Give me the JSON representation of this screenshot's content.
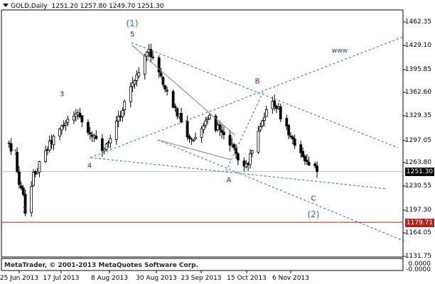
{
  "header": {
    "symbol": "GOLD,Daily",
    "open": "1251.20",
    "high": "1257.80",
    "low": "1249.70",
    "close": "1251.30"
  },
  "price_axis": {
    "ticks": [
      "1462.35",
      "1429.10",
      "1395.85",
      "1362.60",
      "1329.35",
      "1297.05",
      "1263.80",
      "1230.55",
      "1197.30",
      "1164.05",
      "1131.75"
    ],
    "current_price": "1251.30",
    "support_level": "1179.71"
  },
  "time_axis": {
    "ticks": [
      "25 Jun 2013",
      "17 Jul 2013",
      "8 Aug 2013",
      "30 Aug 2013",
      "23 Sep 2013",
      "15 Oct 2013",
      "6 Nov 2013"
    ]
  },
  "wave_labels": {
    "w1": "1",
    "w2": "2",
    "w3": "3",
    "w4": "4",
    "w5": "5",
    "A": "A",
    "B": "B",
    "C": "C",
    "cycle1": "(1)",
    "cycle2": "(2)",
    "www": "www"
  },
  "indicator": {
    "label": "MetaTrader, © 2001-2013 MetaQuotes Software Corp.",
    "top_value": "0.0000",
    "bottom_value": "-0.0000"
  },
  "colors": {
    "background": "#ffffff",
    "candle": "#000000",
    "wave_impulse": "#800080",
    "wave_cycle": "#1e6fd9",
    "trendline": "#1e6fd9",
    "channel_line": "#808080",
    "support_line": "#b22222",
    "price_tag_bg": "#000000"
  },
  "chart_data": {
    "type": "candlestick",
    "title": "GOLD,Daily",
    "ylim": [
      1131.75,
      1462.35
    ],
    "x_ticks": [
      "25 Jun 2013",
      "17 Jul 2013",
      "8 Aug 2013",
      "30 Aug 2013",
      "23 Sep 2013",
      "15 Oct 2013",
      "6 Nov 2013"
    ],
    "anchors": [
      {
        "date": "2013-06-20",
        "close": 1290
      },
      {
        "date": "2013-06-27",
        "close": 1215
      },
      {
        "date": "2013-06-28",
        "close": 1190
      },
      {
        "date": "2013-07-02",
        "close": 1245
      },
      {
        "date": "2013-07-11",
        "close": 1295
      },
      {
        "date": "2013-07-23",
        "close": 1336
      },
      {
        "date": "2013-08-06",
        "close": 1278
      },
      {
        "date": "2013-08-21",
        "close": 1383
      },
      {
        "date": "2013-08-28",
        "close": 1425
      },
      {
        "date": "2013-09-05",
        "close": 1368
      },
      {
        "date": "2013-09-18",
        "close": 1293
      },
      {
        "date": "2013-09-26",
        "close": 1330
      },
      {
        "date": "2013-10-15",
        "close": 1258
      },
      {
        "date": "2013-10-28",
        "close": 1355
      },
      {
        "date": "2013-11-06",
        "close": 1302
      },
      {
        "date": "2013-11-13",
        "close": 1265
      },
      {
        "date": "2013-11-19",
        "close": 1251.3
      }
    ],
    "levels": {
      "current": 1251.3,
      "support": 1179.71
    }
  }
}
